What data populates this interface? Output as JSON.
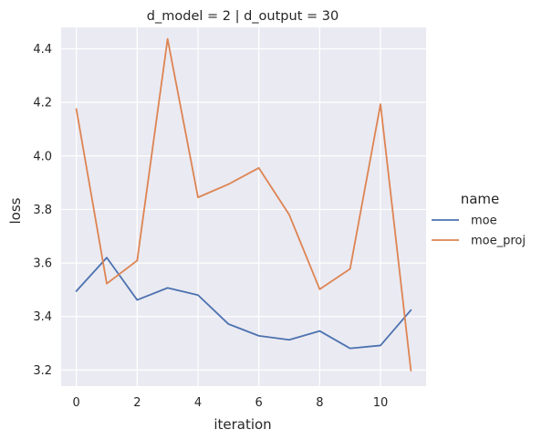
{
  "chart_data": {
    "type": "line",
    "title": "d_model = 2 | d_output = 30",
    "xlabel": "iteration",
    "ylabel": "loss",
    "x": [
      0,
      1,
      2,
      3,
      4,
      5,
      6,
      7,
      8,
      9,
      10,
      11
    ],
    "xlim": [
      -0.5,
      11.5
    ],
    "ylim": [
      3.14,
      4.48
    ],
    "xticks": [
      0,
      2,
      4,
      6,
      8,
      10
    ],
    "yticks": [
      3.2,
      3.4,
      3.6,
      3.8,
      4.0,
      4.2,
      4.4
    ],
    "xtick_labels": [
      "0",
      "2",
      "4",
      "6",
      "8",
      "10"
    ],
    "ytick_labels": [
      "3.2",
      "3.4",
      "3.6",
      "3.8",
      "4.0",
      "4.2",
      "4.4"
    ],
    "grid": true,
    "background": "#eaeaf2",
    "legend": {
      "title": "name",
      "placement": "right-outside"
    },
    "series": [
      {
        "name": "moe",
        "color": "#4c72b0",
        "values": [
          3.495,
          3.62,
          3.462,
          3.507,
          3.48,
          3.372,
          3.328,
          3.313,
          3.346,
          3.281,
          3.292,
          3.424
        ]
      },
      {
        "name": "moe_proj",
        "color": "#dd8452",
        "values": [
          4.175,
          3.523,
          3.609,
          4.437,
          3.845,
          3.894,
          3.955,
          3.78,
          3.502,
          3.578,
          4.193,
          3.198
        ]
      }
    ]
  }
}
